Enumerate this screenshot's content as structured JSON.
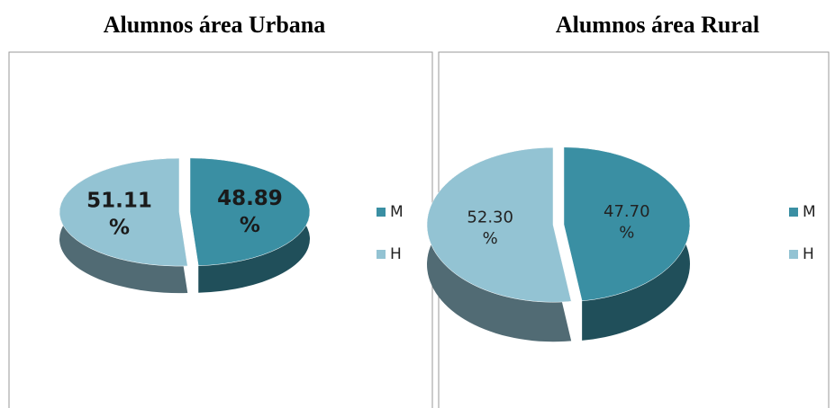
{
  "chart_data": [
    {
      "type": "pie",
      "title": "Alumnos área Urbana",
      "categories": [
        "M",
        "H"
      ],
      "values": [
        48.89,
        51.11
      ],
      "value_labels": [
        "48.89 %",
        "51.11 %"
      ],
      "colors": [
        "#3a8fa3",
        "#93c3d3"
      ]
    },
    {
      "type": "pie",
      "title": "Alumnos área Rural",
      "categories": [
        "M",
        "H"
      ],
      "values": [
        47.7,
        52.3
      ],
      "value_labels": [
        "47.70 %",
        "52.30 %"
      ],
      "colors": [
        "#3a8fa3",
        "#93c3d3"
      ]
    }
  ]
}
